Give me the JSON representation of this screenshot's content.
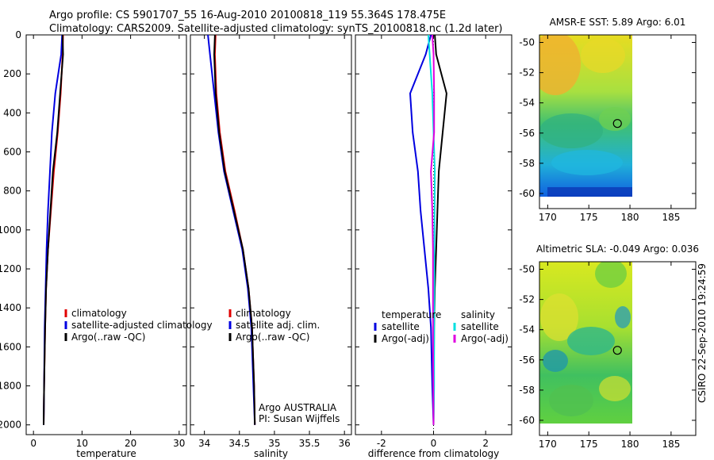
{
  "header": {
    "line1": "Argo profile: CS 5901707_55 16-Aug-2010 20100818_119 55.364S 178.475E",
    "line2": "Climatology: CARS2009. Satellite-adjusted climatology: synTS_20100818.nc (1.2d later)"
  },
  "side_text": "CSIRO 22-Sep-2010 19:24:59",
  "colors": {
    "climatology": "#e00000",
    "satellite": "#0000e0",
    "argo": "#000000",
    "sat_salinity": "#00e0e0",
    "argo_adj_salinity": "#e000e0"
  },
  "chart_data": [
    {
      "type": "line",
      "name": "temperature-profile",
      "xlabel": "temperature",
      "ylabel": "",
      "xlim": [
        -1.5,
        31.5
      ],
      "ylim": [
        2050,
        0
      ],
      "y_reversed": true,
      "xticks": [
        0,
        10,
        20,
        30
      ],
      "yticks": [
        0,
        200,
        400,
        600,
        800,
        1000,
        1200,
        1400,
        1600,
        1800,
        2000
      ],
      "legend": [
        "climatology",
        "satellite-adjusted climatology",
        "Argo(..raw -QC)"
      ],
      "series": [
        {
          "name": "climatology",
          "color": "#e00000",
          "x": [
            6.1,
            6.0,
            5.6,
            5.0,
            4.2,
            3.6,
            3.0,
            2.6,
            2.4,
            2.2,
            2.1
          ],
          "y": [
            0,
            100,
            300,
            500,
            700,
            900,
            1100,
            1300,
            1500,
            1800,
            2000
          ]
        },
        {
          "name": "satellite-adjusted climatology",
          "color": "#0000e0",
          "x": [
            5.9,
            5.7,
            4.5,
            3.8,
            3.4,
            3.0,
            2.7,
            2.5,
            2.3,
            2.2,
            2.1
          ],
          "y": [
            0,
            100,
            300,
            500,
            700,
            900,
            1100,
            1300,
            1500,
            1800,
            2000
          ]
        },
        {
          "name": "Argo(..raw -QC)",
          "color": "#000000",
          "x": [
            6.0,
            6.1,
            5.5,
            4.9,
            4.0,
            3.5,
            3.0,
            2.6,
            2.4,
            2.2,
            2.1
          ],
          "y": [
            0,
            100,
            300,
            500,
            700,
            900,
            1100,
            1300,
            1500,
            1800,
            2000
          ]
        }
      ]
    },
    {
      "type": "line",
      "name": "salinity-profile",
      "xlabel": "salinity",
      "ylabel": "",
      "xlim": [
        33.8,
        36.1
      ],
      "ylim": [
        2050,
        0
      ],
      "y_reversed": true,
      "xticks": [
        34,
        34.5,
        35,
        35.5,
        36
      ],
      "yticks": [],
      "legend": [
        "climatology",
        "satellite adj. clim.",
        "Argo(..raw -QC)"
      ],
      "annotation": [
        "Argo AUSTRALIA",
        "PI: Susan Wijffels"
      ],
      "series": [
        {
          "name": "climatology",
          "color": "#e00000",
          "x": [
            34.16,
            34.15,
            34.17,
            34.22,
            34.3,
            34.43,
            34.55,
            34.63,
            34.68,
            34.71,
            34.72
          ],
          "y": [
            0,
            100,
            300,
            500,
            700,
            900,
            1100,
            1300,
            1500,
            1800,
            2000
          ]
        },
        {
          "name": "satellite adj. clim.",
          "color": "#0000e0",
          "x": [
            34.05,
            34.08,
            34.14,
            34.2,
            34.28,
            34.41,
            34.54,
            34.62,
            34.67,
            34.7,
            34.72
          ],
          "y": [
            0,
            100,
            300,
            500,
            700,
            900,
            1100,
            1300,
            1500,
            1800,
            2000
          ]
        },
        {
          "name": "Argo(..raw -QC)",
          "color": "#000000",
          "x": [
            34.15,
            34.14,
            34.16,
            34.21,
            34.29,
            34.42,
            34.55,
            34.63,
            34.68,
            34.71,
            34.72
          ],
          "y": [
            0,
            100,
            300,
            500,
            700,
            900,
            1100,
            1300,
            1500,
            1800,
            2000
          ]
        }
      ]
    },
    {
      "type": "line",
      "name": "difference-profile",
      "xlabel": "difference from climatology",
      "ylabel": "",
      "xlim": [
        -3.0,
        3.0
      ],
      "ylim": [
        2050,
        0
      ],
      "y_reversed": true,
      "xticks": [
        -2,
        0,
        2
      ],
      "yticks": [],
      "legend_groups": [
        {
          "heading": "temperature",
          "items": [
            "satellite",
            "Argo(-adj)"
          ]
        },
        {
          "heading": "salinity",
          "items": [
            "satellite",
            "Argo(-adj)"
          ]
        }
      ],
      "series": [
        {
          "name": "temperature satellite",
          "color": "#0000e0",
          "x": [
            -0.1,
            -0.3,
            -0.9,
            -0.8,
            -0.6,
            -0.5,
            -0.35,
            -0.2,
            -0.1,
            -0.05,
            0.0
          ],
          "y": [
            0,
            100,
            300,
            500,
            700,
            900,
            1100,
            1300,
            1500,
            1800,
            2000
          ]
        },
        {
          "name": "temperature Argo(-adj)",
          "color": "#000000",
          "x": [
            0.05,
            0.1,
            0.5,
            0.35,
            0.2,
            0.15,
            0.1,
            0.05,
            0.02,
            0.01,
            0.0
          ],
          "y": [
            0,
            100,
            300,
            500,
            700,
            900,
            1100,
            1300,
            1500,
            1800,
            2000
          ]
        },
        {
          "name": "salinity satellite",
          "color": "#00e0e0",
          "x": [
            -0.2,
            -0.15,
            -0.05,
            0.0,
            0.05,
            0.04,
            0.03,
            0.03,
            0.02,
            0.02,
            0.0
          ],
          "y": [
            0,
            100,
            300,
            500,
            700,
            900,
            1100,
            1300,
            1500,
            1800,
            2000
          ]
        },
        {
          "name": "salinity Argo(-adj)",
          "color": "#e000e0",
          "x": [
            -0.05,
            0.0,
            0.02,
            0.02,
            -0.1,
            -0.05,
            -0.02,
            -0.02,
            -0.02,
            -0.01,
            0.0
          ],
          "y": [
            0,
            100,
            300,
            500,
            700,
            900,
            1100,
            1300,
            1500,
            1800,
            2000
          ]
        }
      ]
    },
    {
      "type": "heatmap",
      "name": "sst-map",
      "title": "AMSR-E SST: 5.89  Argo: 6.01",
      "xlim": [
        169,
        188
      ],
      "ylim": [
        -61,
        -49.5
      ],
      "xticks": [
        170,
        175,
        180,
        185
      ],
      "yticks": [
        -50,
        -52,
        -54,
        -56,
        -58,
        -60
      ],
      "data_extent": {
        "lon": [
          169,
          180
        ],
        "lat": [
          -60,
          -49.5
        ]
      },
      "marker": {
        "lon": 178.475,
        "lat": -55.364
      }
    },
    {
      "type": "heatmap",
      "name": "sla-map",
      "title": "Altimetric SLA: -0.049  Argo: 0.036",
      "xlim": [
        169,
        188
      ],
      "ylim": [
        -61,
        -49.5
      ],
      "xticks": [
        170,
        175,
        180,
        185
      ],
      "yticks": [
        -50,
        -52,
        -54,
        -56,
        -58,
        -60
      ],
      "data_extent": {
        "lon": [
          169,
          180
        ],
        "lat": [
          -60,
          -49.5
        ]
      },
      "marker": {
        "lon": 178.475,
        "lat": -55.364
      }
    }
  ]
}
